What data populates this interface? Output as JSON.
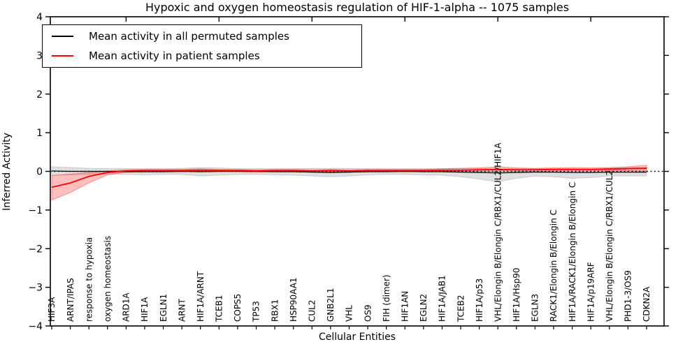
{
  "title": "Hypoxic and oxygen homeostasis regulation of HIF-1-alpha -- 1075 samples",
  "legend": {
    "items": [
      {
        "label": "Mean activity in all permuted samples",
        "color": "#000000"
      },
      {
        "label": "Mean activity in patient samples",
        "color": "#ff0000"
      }
    ]
  },
  "chart_data": {
    "type": "line",
    "title": "Hypoxic and oxygen homeostasis regulation of HIF-1-alpha -- 1075 samples",
    "xlabel": "Cellular Entities",
    "ylabel": "Inferred Activity",
    "ylim": [
      -4,
      4
    ],
    "grid": false,
    "legend_position": "upper left",
    "zero_reference_line": true,
    "yticks": [
      {
        "v": -4,
        "label": "−4"
      },
      {
        "v": -3,
        "label": "−3"
      },
      {
        "v": -2,
        "label": "−2"
      },
      {
        "v": -1,
        "label": "−1"
      },
      {
        "v": 0,
        "label": "0"
      },
      {
        "v": 1,
        "label": "1"
      },
      {
        "v": 2,
        "label": "2"
      },
      {
        "v": 3,
        "label": "3"
      },
      {
        "v": 4,
        "label": "4"
      }
    ],
    "top_tick_indices": [
      4,
      9,
      14,
      19,
      24,
      29
    ],
    "categories": [
      "HIF3A",
      "ARNT/IPAS",
      "response to hypoxia",
      "oxygen homeostasis",
      "ARD1A",
      "HIF1A",
      "EGLN1",
      "ARNT",
      "HIF1A/ARNT",
      "TCEB1",
      "COPS5",
      "TP53",
      "RBX1",
      "HSP90AA1",
      "CUL2",
      "GNB2L1",
      "VHL",
      "OS9",
      "FIH (dimer)",
      "HIF1AN",
      "EGLN2",
      "HIF1A/JAB1",
      "TCEB2",
      "HIF1A/p53",
      "VHL/Elongin B/Elongin C/RBX1/CUL2/HIF1A",
      "HIF1A/Hsp90",
      "EGLN3",
      "RACK1/Elongin B/Elongin C",
      "HIF1A/RACK1/Elongin B/Elongin C",
      "HIF1A/p19ARF",
      "VHL/Elongin B/Elongin C/RBX1/CUL2",
      "PHD1-3/OS9",
      "CDKN2A"
    ],
    "series": [
      {
        "name": "Mean activity in all permuted samples",
        "color": "#000000",
        "line_width": 1.2,
        "band_fill": "rgba(0,0,0,0.12)",
        "band_edge": "rgba(0,0,0,0.15)",
        "values": [
          0.01,
          0.0,
          0.0,
          0.0,
          -0.01,
          -0.01,
          -0.01,
          0.0,
          -0.01,
          0.0,
          0.0,
          0.0,
          -0.01,
          -0.01,
          -0.02,
          -0.03,
          -0.02,
          -0.01,
          -0.01,
          0.0,
          -0.01,
          -0.01,
          -0.02,
          -0.03,
          -0.04,
          -0.03,
          -0.02,
          -0.02,
          -0.03,
          -0.03,
          -0.02,
          -0.02,
          -0.02
        ],
        "band_upper": [
          0.12,
          0.1,
          0.08,
          0.07,
          0.07,
          0.07,
          0.07,
          0.08,
          0.1,
          0.09,
          0.07,
          0.07,
          0.07,
          0.07,
          0.08,
          0.08,
          0.08,
          0.07,
          0.07,
          0.07,
          0.07,
          0.07,
          0.08,
          0.08,
          0.06,
          0.07,
          0.07,
          0.07,
          0.07,
          0.06,
          0.08,
          0.1,
          0.1
        ],
        "band_lower": [
          -0.1,
          -0.09,
          -0.08,
          -0.07,
          -0.08,
          -0.09,
          -0.08,
          -0.08,
          -0.12,
          -0.1,
          -0.08,
          -0.08,
          -0.09,
          -0.1,
          -0.12,
          -0.14,
          -0.12,
          -0.09,
          -0.08,
          -0.08,
          -0.09,
          -0.1,
          -0.14,
          -0.2,
          -0.27,
          -0.18,
          -0.12,
          -0.14,
          -0.18,
          -0.16,
          -0.12,
          -0.12,
          -0.12
        ]
      },
      {
        "name": "Mean activity in patient samples",
        "color": "#ff0000",
        "line_width": 1.8,
        "band_fill": "rgba(255,0,0,0.25)",
        "band_edge": "rgba(255,0,0,0.35)",
        "values": [
          -0.41,
          -0.3,
          -0.13,
          -0.03,
          0.01,
          0.02,
          0.02,
          0.02,
          0.03,
          0.02,
          0.02,
          0.01,
          0.02,
          0.02,
          0.01,
          0.02,
          0.01,
          0.02,
          0.02,
          0.02,
          0.02,
          0.03,
          0.03,
          0.04,
          0.05,
          0.04,
          0.04,
          0.05,
          0.05,
          0.05,
          0.06,
          0.07,
          0.08
        ],
        "band_upper": [
          -0.11,
          -0.07,
          -0.03,
          0.01,
          0.04,
          0.05,
          0.05,
          0.05,
          0.07,
          0.05,
          0.05,
          0.04,
          0.05,
          0.05,
          0.04,
          0.05,
          0.04,
          0.05,
          0.05,
          0.05,
          0.05,
          0.07,
          0.08,
          0.09,
          0.12,
          0.09,
          0.08,
          0.09,
          0.1,
          0.09,
          0.1,
          0.12,
          0.16
        ],
        "band_lower": [
          -0.74,
          -0.55,
          -0.3,
          -0.09,
          -0.02,
          -0.01,
          -0.01,
          -0.01,
          0.0,
          -0.01,
          -0.01,
          -0.02,
          -0.01,
          -0.01,
          -0.02,
          -0.01,
          -0.02,
          -0.01,
          -0.01,
          -0.01,
          -0.01,
          0.0,
          0.0,
          0.0,
          0.0,
          0.0,
          0.0,
          0.01,
          0.01,
          0.01,
          0.02,
          0.02,
          0.0
        ]
      }
    ]
  }
}
